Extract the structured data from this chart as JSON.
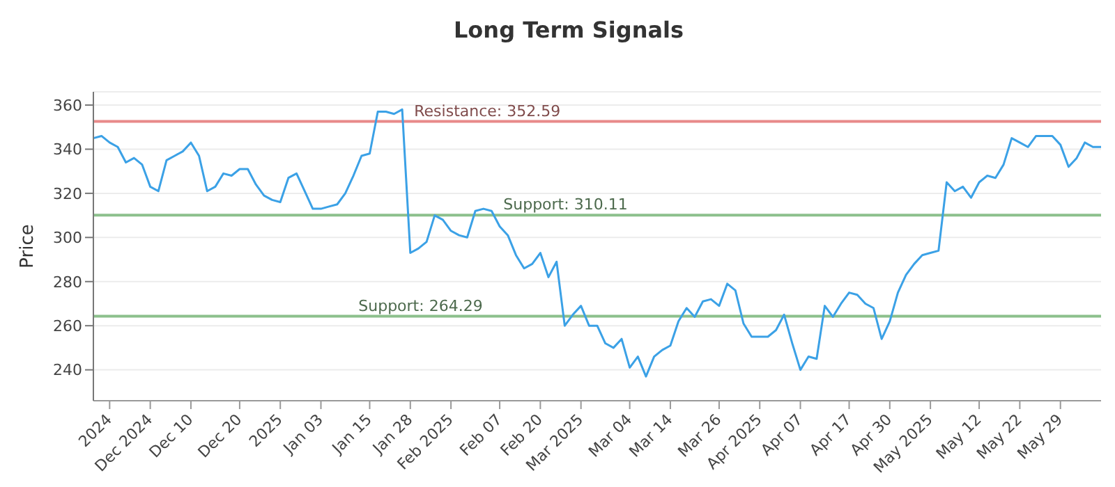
{
  "chart_data": {
    "type": "line",
    "title": "Long Term Signals",
    "ylabel": "Price",
    "categories": [
      null,
      null,
      "2024",
      null,
      null,
      null,
      null,
      "Dec 2024",
      null,
      null,
      null,
      null,
      "Dec 10",
      null,
      null,
      null,
      null,
      null,
      "Dec 20",
      null,
      null,
      null,
      null,
      "2025",
      null,
      null,
      null,
      null,
      "Jan 03",
      null,
      null,
      null,
      null,
      null,
      "Jan 15",
      null,
      null,
      null,
      null,
      "Jan 28",
      null,
      null,
      null,
      null,
      "Feb 2025",
      null,
      null,
      null,
      null,
      null,
      "Feb 07",
      null,
      null,
      null,
      null,
      "Feb 20",
      null,
      null,
      null,
      null,
      "Mar 2025",
      null,
      null,
      null,
      null,
      null,
      "Mar 04",
      null,
      null,
      null,
      null,
      "Mar 14",
      null,
      null,
      null,
      null,
      null,
      "Mar 26",
      null,
      null,
      null,
      null,
      "Apr 2025",
      null,
      null,
      null,
      null,
      "Apr 07",
      null,
      null,
      null,
      null,
      null,
      "Apr 17",
      null,
      null,
      null,
      null,
      "Apr 30",
      null,
      null,
      null,
      null,
      "May 2025",
      null,
      null,
      null,
      null,
      null,
      "May 12",
      null,
      null,
      null,
      null,
      "May 22",
      null,
      null,
      null,
      null,
      "May 29",
      null,
      null,
      null,
      null,
      null
    ],
    "series": [
      {
        "color": "#3ba1e6",
        "values": [
          345,
          346,
          343,
          341,
          334,
          336,
          333,
          323,
          321,
          335,
          337,
          339,
          343,
          337,
          321,
          323,
          329,
          328,
          331,
          331,
          324,
          319,
          317,
          316,
          327,
          329,
          321,
          313,
          313,
          314,
          315,
          320,
          328,
          337,
          338,
          357,
          357,
          356,
          358,
          293,
          295,
          298,
          310,
          308,
          303,
          301,
          300,
          312,
          313,
          312,
          305,
          301,
          292,
          286,
          288,
          293,
          282,
          289,
          260,
          265,
          269,
          260,
          260,
          252,
          250,
          254,
          241,
          246,
          237,
          246,
          249,
          251,
          262,
          268,
          264,
          271,
          272,
          269,
          279,
          276,
          261,
          255,
          255,
          255,
          258,
          265,
          252,
          240,
          246,
          245,
          269,
          264,
          270,
          275,
          274,
          270,
          268,
          254,
          262,
          275,
          283,
          288,
          292,
          293,
          294,
          325,
          321,
          323,
          318,
          325,
          328,
          327,
          333,
          345,
          343,
          341,
          346,
          346,
          346,
          342,
          332,
          336,
          343,
          341,
          341
        ]
      }
    ],
    "ylim": [
      226,
      366
    ],
    "yticks": [
      240,
      260,
      280,
      300,
      320,
      340,
      360
    ],
    "grid": "y",
    "marker": "none",
    "line_style": "solid",
    "legend": false,
    "ref_lines": [
      {
        "axis": "y",
        "value": 352.59,
        "label": "Resistance: 352.59",
        "color": "#e88a8a"
      },
      {
        "axis": "y",
        "value": 310.11,
        "label": "Support: 310.11",
        "color": "#8cc08c"
      },
      {
        "axis": "y",
        "value": 264.29,
        "label": "Support: 264.29",
        "color": "#8cc08c"
      }
    ]
  }
}
